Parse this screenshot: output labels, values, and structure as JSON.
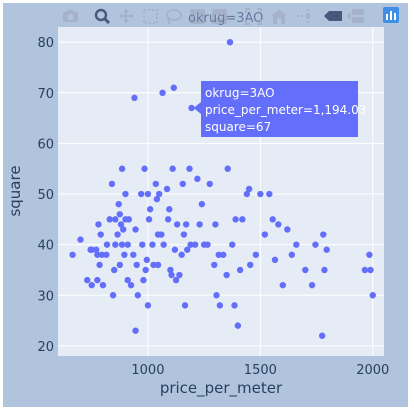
{
  "colors": {
    "outer_bg": "#b0c4de",
    "plot_bg": "#e5ecf6",
    "grid": "#ffffff",
    "marker": "#636efa",
    "icon_inactive": "#a6b2c9",
    "icon_active": "#48587b",
    "logo": "#3f8ee8"
  },
  "modebar": {
    "icons": [
      "camera-icon",
      "zoom-icon",
      "pan-icon",
      "box-select-icon",
      "lasso-select-icon",
      "zoom-in-icon",
      "zoom-out-icon",
      "autoscale-icon",
      "reset-axes-icon",
      "spike-lines-icon",
      "hover-closest-icon",
      "hover-compare-icon",
      "plotly-logo-icon"
    ],
    "overlap_label": "okrug=3AO"
  },
  "tooltip": {
    "line1": "okrug=3AO",
    "line2": "price_per_meter=1,194.03",
    "line3": "square=67"
  },
  "chart_data": {
    "type": "scatter",
    "xlabel": "price_per_meter",
    "ylabel": "square",
    "xlim": [
      600,
      2050
    ],
    "ylim": [
      18,
      83
    ],
    "xticks": [
      1000,
      1500,
      2000
    ],
    "xtick_labels": [
      "1000",
      "1500",
      "2000"
    ],
    "yticks": [
      20,
      30,
      40,
      50,
      60,
      70,
      80
    ],
    "ytick_labels": [
      "20",
      "30",
      "40",
      "50",
      "60",
      "70",
      "80"
    ],
    "grid": true,
    "hovered_point": {
      "x": 1194.03,
      "y": 67
    },
    "points": [
      [
        665,
        38
      ],
      [
        700,
        41
      ],
      [
        730,
        33
      ],
      [
        745,
        39
      ],
      [
        750,
        39
      ],
      [
        750,
        32
      ],
      [
        770,
        39
      ],
      [
        775,
        33
      ],
      [
        775,
        38
      ],
      [
        780,
        44
      ],
      [
        785,
        36
      ],
      [
        790,
        42
      ],
      [
        795,
        38
      ],
      [
        800,
        32
      ],
      [
        815,
        38
      ],
      [
        818,
        40
      ],
      [
        830,
        45
      ],
      [
        840,
        52
      ],
      [
        845,
        30
      ],
      [
        850,
        35
      ],
      [
        855,
        45
      ],
      [
        855,
        40
      ],
      [
        865,
        42
      ],
      [
        870,
        48
      ],
      [
        875,
        36
      ],
      [
        875,
        46
      ],
      [
        880,
        44
      ],
      [
        885,
        55
      ],
      [
        885,
        40
      ],
      [
        890,
        43
      ],
      [
        895,
        38
      ],
      [
        900,
        45
      ],
      [
        900,
        50
      ],
      [
        910,
        33
      ],
      [
        910,
        40
      ],
      [
        915,
        45
      ],
      [
        925,
        32
      ],
      [
        935,
        38
      ],
      [
        940,
        69
      ],
      [
        945,
        43
      ],
      [
        945,
        23
      ],
      [
        950,
        36
      ],
      [
        955,
        30
      ],
      [
        970,
        50
      ],
      [
        975,
        40
      ],
      [
        980,
        33
      ],
      [
        985,
        55
      ],
      [
        990,
        35
      ],
      [
        995,
        37
      ],
      [
        1000,
        50
      ],
      [
        1000,
        28
      ],
      [
        1005,
        45
      ],
      [
        1010,
        47
      ],
      [
        1020,
        40
      ],
      [
        1025,
        36
      ],
      [
        1035,
        52
      ],
      [
        1040,
        49
      ],
      [
        1045,
        42
      ],
      [
        1045,
        36
      ],
      [
        1050,
        50
      ],
      [
        1060,
        42
      ],
      [
        1065,
        70
      ],
      [
        1070,
        40
      ],
      [
        1085,
        51
      ],
      [
        1090,
        45
      ],
      [
        1095,
        47
      ],
      [
        1100,
        35
      ],
      [
        1105,
        34
      ],
      [
        1110,
        55
      ],
      [
        1115,
        71
      ],
      [
        1120,
        39
      ],
      [
        1125,
        33
      ],
      [
        1130,
        44
      ],
      [
        1140,
        34
      ],
      [
        1150,
        38
      ],
      [
        1155,
        52
      ],
      [
        1160,
        42
      ],
      [
        1165,
        28
      ],
      [
        1170,
        44
      ],
      [
        1175,
        39
      ],
      [
        1185,
        55
      ],
      [
        1190,
        40
      ],
      [
        1194.03,
        67
      ],
      [
        1210,
        40
      ],
      [
        1220,
        53
      ],
      [
        1230,
        44
      ],
      [
        1240,
        48
      ],
      [
        1250,
        40
      ],
      [
        1265,
        40
      ],
      [
        1275,
        52
      ],
      [
        1295,
        36
      ],
      [
        1300,
        44
      ],
      [
        1305,
        30
      ],
      [
        1315,
        38
      ],
      [
        1320,
        28
      ],
      [
        1335,
        38
      ],
      [
        1350,
        34
      ],
      [
        1355,
        55
      ],
      [
        1365,
        80
      ],
      [
        1375,
        40
      ],
      [
        1385,
        28
      ],
      [
        1390,
        45
      ],
      [
        1400,
        24
      ],
      [
        1410,
        35
      ],
      [
        1420,
        45
      ],
      [
        1440,
        50
      ],
      [
        1450,
        51
      ],
      [
        1455,
        36
      ],
      [
        1480,
        38
      ],
      [
        1500,
        50
      ],
      [
        1520,
        42
      ],
      [
        1540,
        50
      ],
      [
        1555,
        45
      ],
      [
        1565,
        37
      ],
      [
        1580,
        44
      ],
      [
        1600,
        32
      ],
      [
        1620,
        43
      ],
      [
        1640,
        38
      ],
      [
        1660,
        40
      ],
      [
        1700,
        35
      ],
      [
        1730,
        32
      ],
      [
        1745,
        40
      ],
      [
        1775,
        22
      ],
      [
        1780,
        42
      ],
      [
        1785,
        35
      ],
      [
        1795,
        39
      ],
      [
        1965,
        35
      ],
      [
        1985,
        38
      ],
      [
        1990,
        35
      ],
      [
        2000,
        30
      ]
    ]
  }
}
